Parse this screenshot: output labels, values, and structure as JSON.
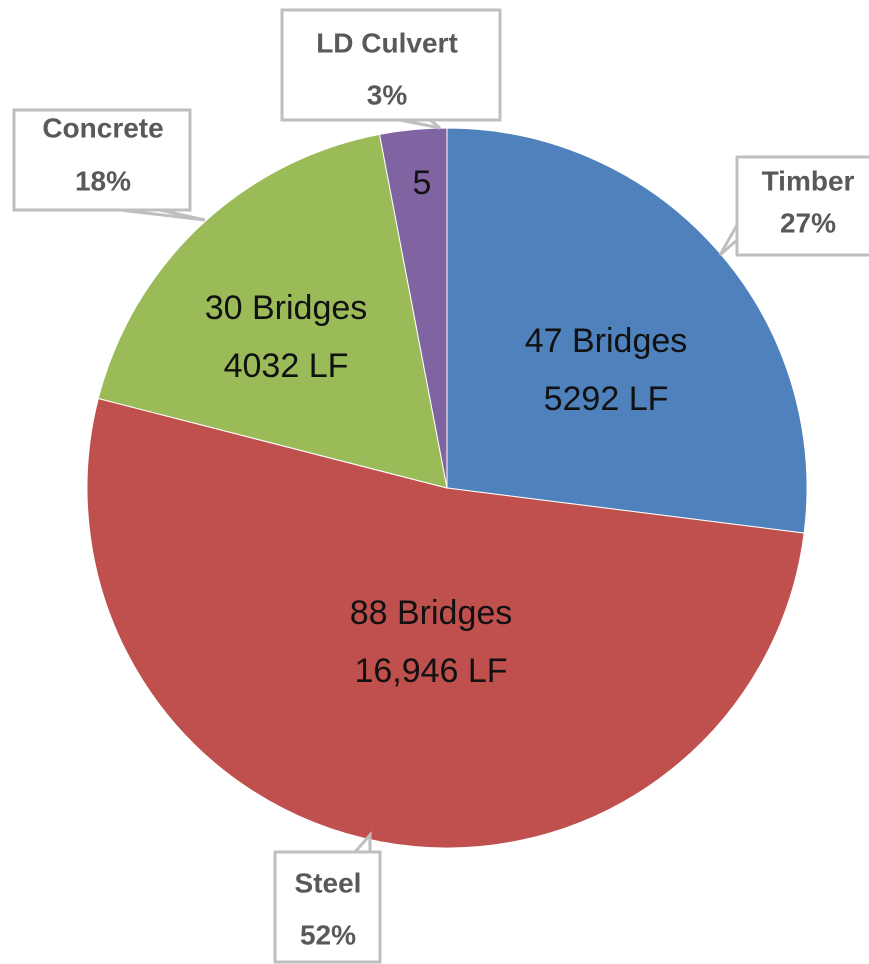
{
  "chart_data": {
    "type": "pie",
    "categories": [
      "Timber",
      "Steel",
      "Concrete",
      "LD Culvert"
    ],
    "values": [
      27,
      52,
      18,
      3
    ],
    "value_labels": [
      "27%",
      "52%",
      "18%",
      "3%"
    ],
    "inner_labels": [
      [
        "47 Bridges",
        "5292 LF"
      ],
      [
        "88 Bridges",
        "16,946 LF"
      ],
      [
        "30 Bridges",
        "4032 LF"
      ],
      [
        "5"
      ]
    ],
    "colors": [
      "#4F81BD",
      "#C0504D",
      "#9BBB59",
      "#8064A2"
    ]
  }
}
